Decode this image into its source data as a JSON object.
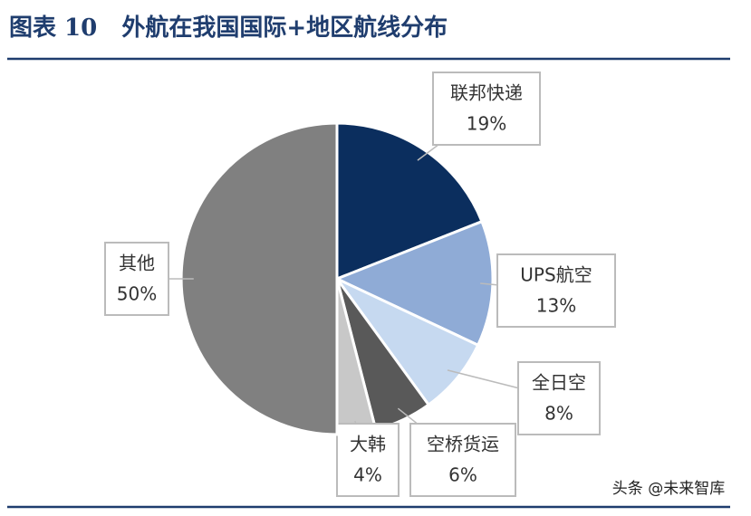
{
  "chart_data": {
    "type": "pie",
    "title": "图表 10   外航在我国国际+地区航线分布",
    "categories": [
      "联邦快递",
      "UPS航空",
      "全日空",
      "空桥货运",
      "大韩",
      "其他"
    ],
    "values": [
      19,
      13,
      8,
      6,
      4,
      50
    ],
    "value_labels": [
      "19%",
      "13%",
      "8%",
      "6%",
      "4%",
      "50%"
    ],
    "colors": [
      "#0b2e5e",
      "#8fabd6",
      "#c6d9f0",
      "#595959",
      "#c8c8c8",
      "#808080"
    ],
    "watermark": "头条 @未来智库"
  }
}
